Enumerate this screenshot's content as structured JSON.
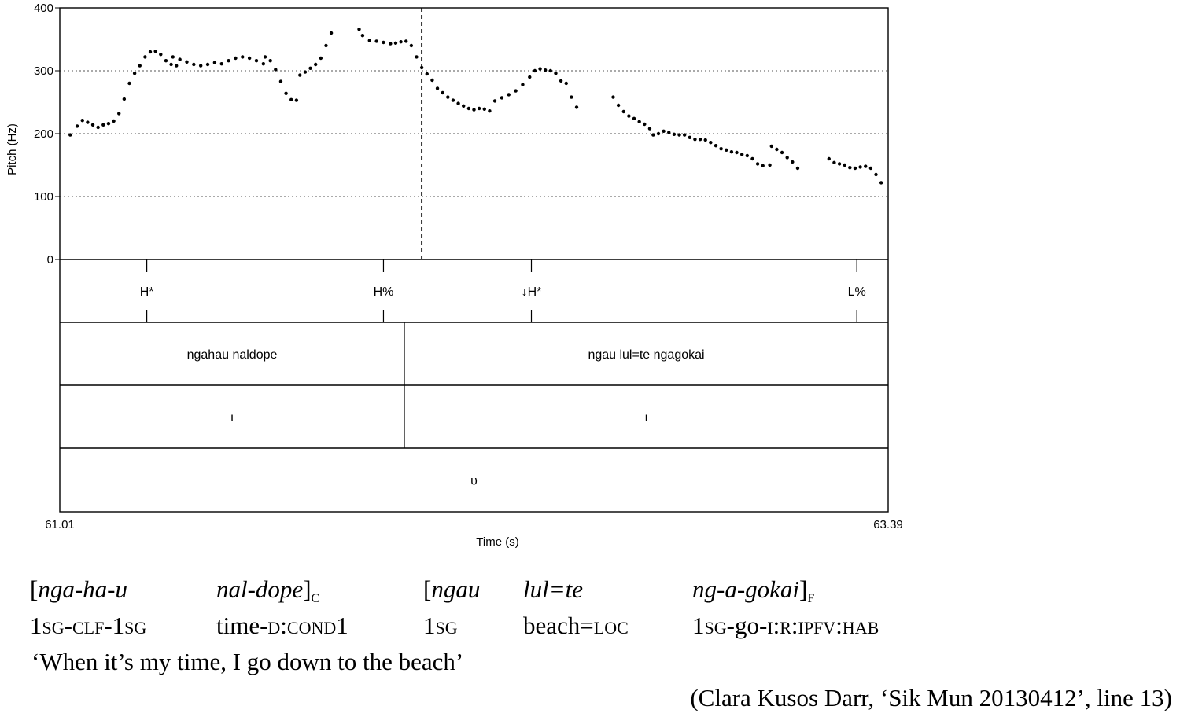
{
  "chart_data": {
    "type": "scatter",
    "title": "",
    "ylabel": "Pitch (Hz)",
    "xlabel": "Time (s)",
    "xlim": [
      61.01,
      63.39
    ],
    "ylim": [
      0,
      400
    ],
    "yticks": [
      "0",
      "100",
      "200",
      "300",
      "400"
    ],
    "xtick_labels": [
      "61.01",
      "63.39"
    ],
    "grid": "horizontal dotted",
    "cursor_time": 62.05,
    "pitch_segments": [
      [
        [
          61.04,
          198
        ],
        [
          61.06,
          212
        ],
        [
          61.075,
          221
        ],
        [
          61.09,
          218
        ],
        [
          61.105,
          214
        ],
        [
          61.12,
          210
        ],
        [
          61.135,
          214
        ],
        [
          61.15,
          216
        ],
        [
          61.165,
          220
        ],
        [
          61.18,
          232
        ],
        [
          61.195,
          255
        ],
        [
          61.21,
          280
        ],
        [
          61.225,
          296
        ],
        [
          61.24,
          308
        ],
        [
          61.255,
          322
        ],
        [
          61.27,
          330
        ],
        [
          61.285,
          331
        ],
        [
          61.3,
          326
        ],
        [
          61.315,
          316
        ],
        [
          61.33,
          310
        ],
        [
          61.345,
          308
        ]
      ],
      [
        [
          61.335,
          322
        ],
        [
          61.355,
          318
        ],
        [
          61.375,
          314
        ],
        [
          61.395,
          310
        ],
        [
          61.415,
          308
        ],
        [
          61.435,
          310
        ],
        [
          61.455,
          313
        ],
        [
          61.475,
          311
        ],
        [
          61.495,
          316
        ],
        [
          61.515,
          320
        ],
        [
          61.535,
          322
        ],
        [
          61.555,
          320
        ],
        [
          61.575,
          316
        ],
        [
          61.595,
          311
        ]
      ],
      [
        [
          61.6,
          322
        ],
        [
          61.615,
          316
        ],
        [
          61.63,
          302
        ],
        [
          61.645,
          283
        ],
        [
          61.66,
          264
        ],
        [
          61.675,
          254
        ],
        [
          61.69,
          253
        ]
      ],
      [
        [
          61.7,
          293
        ],
        [
          61.715,
          298
        ],
        [
          61.73,
          304
        ],
        [
          61.745,
          310
        ],
        [
          61.76,
          320
        ],
        [
          61.775,
          340
        ],
        [
          61.79,
          360
        ]
      ],
      [
        [
          61.87,
          366
        ],
        [
          61.88,
          356
        ],
        [
          61.9,
          348
        ],
        [
          61.92,
          347
        ],
        [
          61.94,
          345
        ],
        [
          61.96,
          343
        ],
        [
          61.975,
          344
        ],
        [
          61.99,
          346
        ],
        [
          62.005,
          347
        ],
        [
          62.02,
          340
        ],
        [
          62.035,
          322
        ],
        [
          62.05,
          305
        ],
        [
          62.065,
          295
        ],
        [
          62.08,
          285
        ],
        [
          62.095,
          272
        ],
        [
          62.11,
          265
        ],
        [
          62.125,
          258
        ],
        [
          62.14,
          253
        ],
        [
          62.155,
          248
        ],
        [
          62.17,
          244
        ],
        [
          62.185,
          240
        ],
        [
          62.2,
          238
        ],
        [
          62.215,
          240
        ],
        [
          62.23,
          239
        ],
        [
          62.245,
          236
        ],
        [
          62.26,
          252
        ],
        [
          62.28,
          257
        ],
        [
          62.3,
          262
        ],
        [
          62.32,
          268
        ],
        [
          62.34,
          278
        ],
        [
          62.36,
          290
        ],
        [
          62.375,
          300
        ],
        [
          62.39,
          303
        ],
        [
          62.405,
          301
        ],
        [
          62.42,
          300
        ],
        [
          62.435,
          296
        ],
        [
          62.45,
          284
        ],
        [
          62.465,
          280
        ],
        [
          62.48,
          258
        ],
        [
          62.495,
          242
        ]
      ],
      [
        [
          62.6,
          258
        ],
        [
          62.615,
          245
        ],
        [
          62.63,
          235
        ],
        [
          62.645,
          228
        ],
        [
          62.66,
          224
        ],
        [
          62.675,
          219
        ],
        [
          62.69,
          215
        ],
        [
          62.705,
          208
        ],
        [
          62.715,
          198
        ],
        [
          62.73,
          200
        ],
        [
          62.745,
          204
        ],
        [
          62.76,
          202
        ],
        [
          62.775,
          199
        ],
        [
          62.79,
          198
        ],
        [
          62.805,
          198
        ],
        [
          62.82,
          194
        ],
        [
          62.835,
          191
        ],
        [
          62.85,
          191
        ],
        [
          62.865,
          190
        ],
        [
          62.88,
          186
        ],
        [
          62.895,
          181
        ],
        [
          62.91,
          176
        ],
        [
          62.925,
          174
        ],
        [
          62.94,
          171
        ],
        [
          62.955,
          170
        ],
        [
          62.97,
          167
        ],
        [
          62.985,
          165
        ],
        [
          63.0,
          160
        ],
        [
          63.015,
          152
        ],
        [
          63.03,
          149
        ],
        [
          63.05,
          150
        ]
      ],
      [
        [
          63.055,
          180
        ],
        [
          63.07,
          175
        ],
        [
          63.085,
          170
        ],
        [
          63.1,
          162
        ],
        [
          63.115,
          155
        ],
        [
          63.13,
          145
        ]
      ],
      [
        [
          63.22,
          160
        ],
        [
          63.235,
          154
        ],
        [
          63.25,
          152
        ],
        [
          63.265,
          150
        ],
        [
          63.28,
          146
        ],
        [
          63.295,
          145
        ],
        [
          63.31,
          147
        ],
        [
          63.325,
          148
        ],
        [
          63.34,
          145
        ],
        [
          63.355,
          135
        ],
        [
          63.37,
          122
        ]
      ]
    ],
    "tone_tier": [
      {
        "label": "H*",
        "time": 61.26
      },
      {
        "label": "H%",
        "time": 61.94
      },
      {
        "label": "↓H*",
        "time": 62.365
      },
      {
        "label": "L%",
        "time": 63.3
      }
    ],
    "word_tier": [
      {
        "label": "ngahau naldope",
        "start": 61.01,
        "end": 62.0
      },
      {
        "label": "ngau lul=te ngagokai",
        "start": 62.0,
        "end": 63.39
      }
    ],
    "phrase_tier": [
      {
        "label": "ι",
        "start": 61.01,
        "end": 62.0
      },
      {
        "label": "ι",
        "start": 62.0,
        "end": 63.39
      }
    ],
    "utterance_tier": [
      {
        "label": "υ",
        "start": 61.01,
        "end": 63.39
      }
    ]
  },
  "gloss": {
    "words": [
      {
        "open": "[",
        "text": "nga-ha-u",
        "close": "",
        "sub": ""
      },
      {
        "open": "",
        "text": "nal-dope",
        "close": "]",
        "sub": "C"
      },
      {
        "open": "[",
        "text": "ngau",
        "close": "",
        "sub": ""
      },
      {
        "open": "",
        "text": "lul=te",
        "close": "",
        "sub": ""
      },
      {
        "open": "",
        "text": "ng-a-gokai",
        "close": "]",
        "sub": "F"
      }
    ],
    "glosses": [
      [
        {
          "t": "1",
          "sc": false
        },
        {
          "t": "sg",
          "sc": true
        },
        {
          "t": "-",
          "sc": false
        },
        {
          "t": "clf",
          "sc": true
        },
        {
          "t": "-1",
          "sc": false
        },
        {
          "t": "sg",
          "sc": true
        }
      ],
      [
        {
          "t": "time-",
          "sc": false
        },
        {
          "t": "d:cond",
          "sc": true
        },
        {
          "t": "1",
          "sc": false
        }
      ],
      [
        {
          "t": "1",
          "sc": false
        },
        {
          "t": "sg",
          "sc": true
        }
      ],
      [
        {
          "t": "beach=",
          "sc": false
        },
        {
          "t": "loc",
          "sc": true
        }
      ],
      [
        {
          "t": "1",
          "sc": false
        },
        {
          "t": "sg",
          "sc": true
        },
        {
          "t": "-go-",
          "sc": false
        },
        {
          "t": "i:r:ipfv:hab",
          "sc": true
        }
      ]
    ],
    "translation": "‘When it’s my time, I go down to the beach’",
    "source": "(Clara Kusos Darr, ‘Sik Mun 20130412’, line 13)"
  }
}
